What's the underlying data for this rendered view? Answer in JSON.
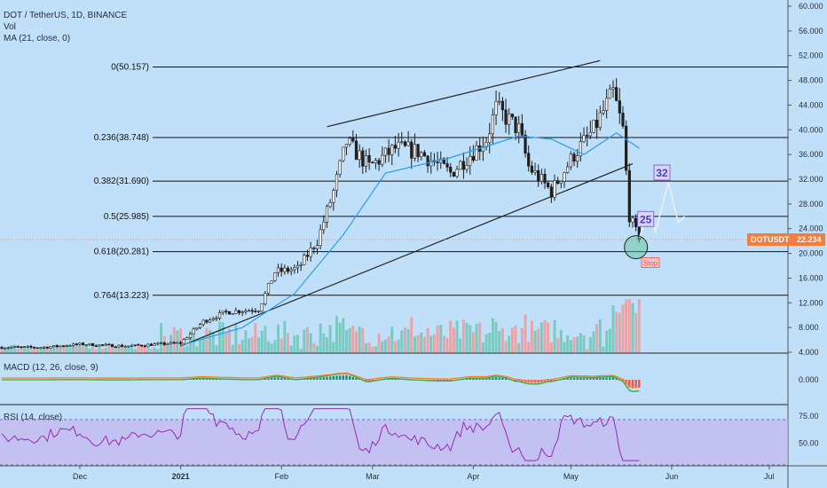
{
  "header": {
    "symbol_line": "DOT / TetherUS, 1D, BINANCE",
    "vol_label": "Vol",
    "ma_label": "MA (21, close, 0)"
  },
  "indicators": {
    "macd_label": "MACD (12, 26, close, 9)",
    "rsi_label": "RSI (14, close)"
  },
  "colors": {
    "background": "#bfe0f8",
    "bull": "#26a69a",
    "bear": "#ef5350",
    "candle": "#1e1e1e",
    "ma": "#2a9df4",
    "macd_line": "#3aa844",
    "signal_line": "#ff7f1e",
    "rsi_line": "#9c27b0",
    "rsi_band": "#c5b3f0",
    "price_tag": "#f57c3a"
  },
  "chart_data": {
    "type": "candlestick",
    "price_axis": {
      "ticks": [
        "60.000",
        "56.000",
        "52.000",
        "48.000",
        "44.000",
        "40.000",
        "36.000",
        "32.000",
        "28.000",
        "24.000",
        "20.000",
        "16.000",
        "12.000",
        "8.000",
        "4.000"
      ],
      "range": [
        4,
        60
      ]
    },
    "macd_axis": {
      "ticks": [
        "0.000"
      ]
    },
    "rsi_axis": {
      "ticks": [
        "75.00",
        "50.00"
      ]
    },
    "x_axis": {
      "ticks": [
        "Dec",
        "2021",
        "Feb",
        "Mar",
        "Apr",
        "May",
        "Jun",
        "Jul"
      ]
    },
    "current_price": {
      "symbol": "DOTUSDT",
      "value": "22.234",
      "price": 22.234
    },
    "fib_levels": [
      {
        "label": "0(50.157)",
        "price": 50.157
      },
      {
        "label": "0.236(38.748)",
        "price": 38.748
      },
      {
        "label": "0.382(31.690)",
        "price": 31.69
      },
      {
        "label": "0.5(25.985)",
        "price": 25.985
      },
      {
        "label": "0.618(20.281)",
        "price": 20.281
      },
      {
        "label": "0.764(13.223)",
        "price": 13.223
      }
    ],
    "trendlines": [
      {
        "from": {
          "date": "2021-01-01",
          "price": 5.0
        },
        "to": {
          "date": "2021-05-20",
          "price": 34.5
        }
      },
      {
        "from": {
          "date": "2021-02-15",
          "price": 40.5
        },
        "to": {
          "date": "2021-05-10",
          "price": 51.2
        }
      }
    ],
    "annotations": [
      {
        "text": "25",
        "date": "2021-05-24",
        "price": 25.5
      },
      {
        "text": "32",
        "date": "2021-05-29",
        "price": 33.0
      },
      {
        "text": "Stop",
        "date": "2021-05-23",
        "price": 18.0
      }
    ],
    "projection_path": [
      {
        "date": "2021-05-22",
        "price": 22.5
      },
      {
        "date": "2021-05-25",
        "price": 27.0
      },
      {
        "date": "2021-05-27",
        "price": 23.5
      },
      {
        "date": "2021-05-31",
        "price": 31.5
      },
      {
        "date": "2021-06-03",
        "price": 25.0
      },
      {
        "date": "2021-06-05",
        "price": 26.0
      }
    ],
    "circle_marker": {
      "date": "2021-05-21",
      "price": 21.0
    },
    "price_series": [
      {
        "date": "2020-11-20",
        "close": 4.8
      },
      {
        "date": "2020-12-01",
        "close": 5.3
      },
      {
        "date": "2020-12-15",
        "close": 5.0
      },
      {
        "date": "2021-01-01",
        "close": 5.5
      },
      {
        "date": "2021-01-08",
        "close": 9.0
      },
      {
        "date": "2021-01-15",
        "close": 10.5
      },
      {
        "date": "2021-01-25",
        "close": 11.0
      },
      {
        "date": "2021-01-30",
        "close": 17.0
      },
      {
        "date": "2021-02-06",
        "close": 17.5
      },
      {
        "date": "2021-02-12",
        "close": 22.0
      },
      {
        "date": "2021-02-17",
        "close": 30.0
      },
      {
        "date": "2021-02-21",
        "close": 38.0
      },
      {
        "date": "2021-02-28",
        "close": 34.0
      },
      {
        "date": "2021-03-08",
        "close": 37.0
      },
      {
        "date": "2021-03-15",
        "close": 36.5
      },
      {
        "date": "2021-03-25",
        "close": 33.0
      },
      {
        "date": "2021-04-05",
        "close": 38.5
      },
      {
        "date": "2021-04-08",
        "close": 43.5
      },
      {
        "date": "2021-04-15",
        "close": 40.0
      },
      {
        "date": "2021-04-18",
        "close": 34.0
      },
      {
        "date": "2021-04-25",
        "close": 30.0
      },
      {
        "date": "2021-05-02",
        "close": 36.0
      },
      {
        "date": "2021-05-08",
        "close": 40.0
      },
      {
        "date": "2021-05-14",
        "close": 46.0
      },
      {
        "date": "2021-05-17",
        "close": 40.0
      },
      {
        "date": "2021-05-19",
        "close": 26.0
      },
      {
        "date": "2021-05-22",
        "close": 22.2
      }
    ],
    "ma_series": [
      {
        "date": "2021-01-01",
        "value": 5.1
      },
      {
        "date": "2021-01-20",
        "value": 8.0
      },
      {
        "date": "2021-02-05",
        "value": 13.5
      },
      {
        "date": "2021-02-20",
        "value": 23.0
      },
      {
        "date": "2021-03-05",
        "value": 33.0
      },
      {
        "date": "2021-03-25",
        "value": 35.5
      },
      {
        "date": "2021-04-15",
        "value": 39.0
      },
      {
        "date": "2021-04-25",
        "value": 38.5
      },
      {
        "date": "2021-05-05",
        "value": 36.0
      },
      {
        "date": "2021-05-15",
        "value": 39.5
      },
      {
        "date": "2021-05-22",
        "value": 37.0
      }
    ]
  }
}
